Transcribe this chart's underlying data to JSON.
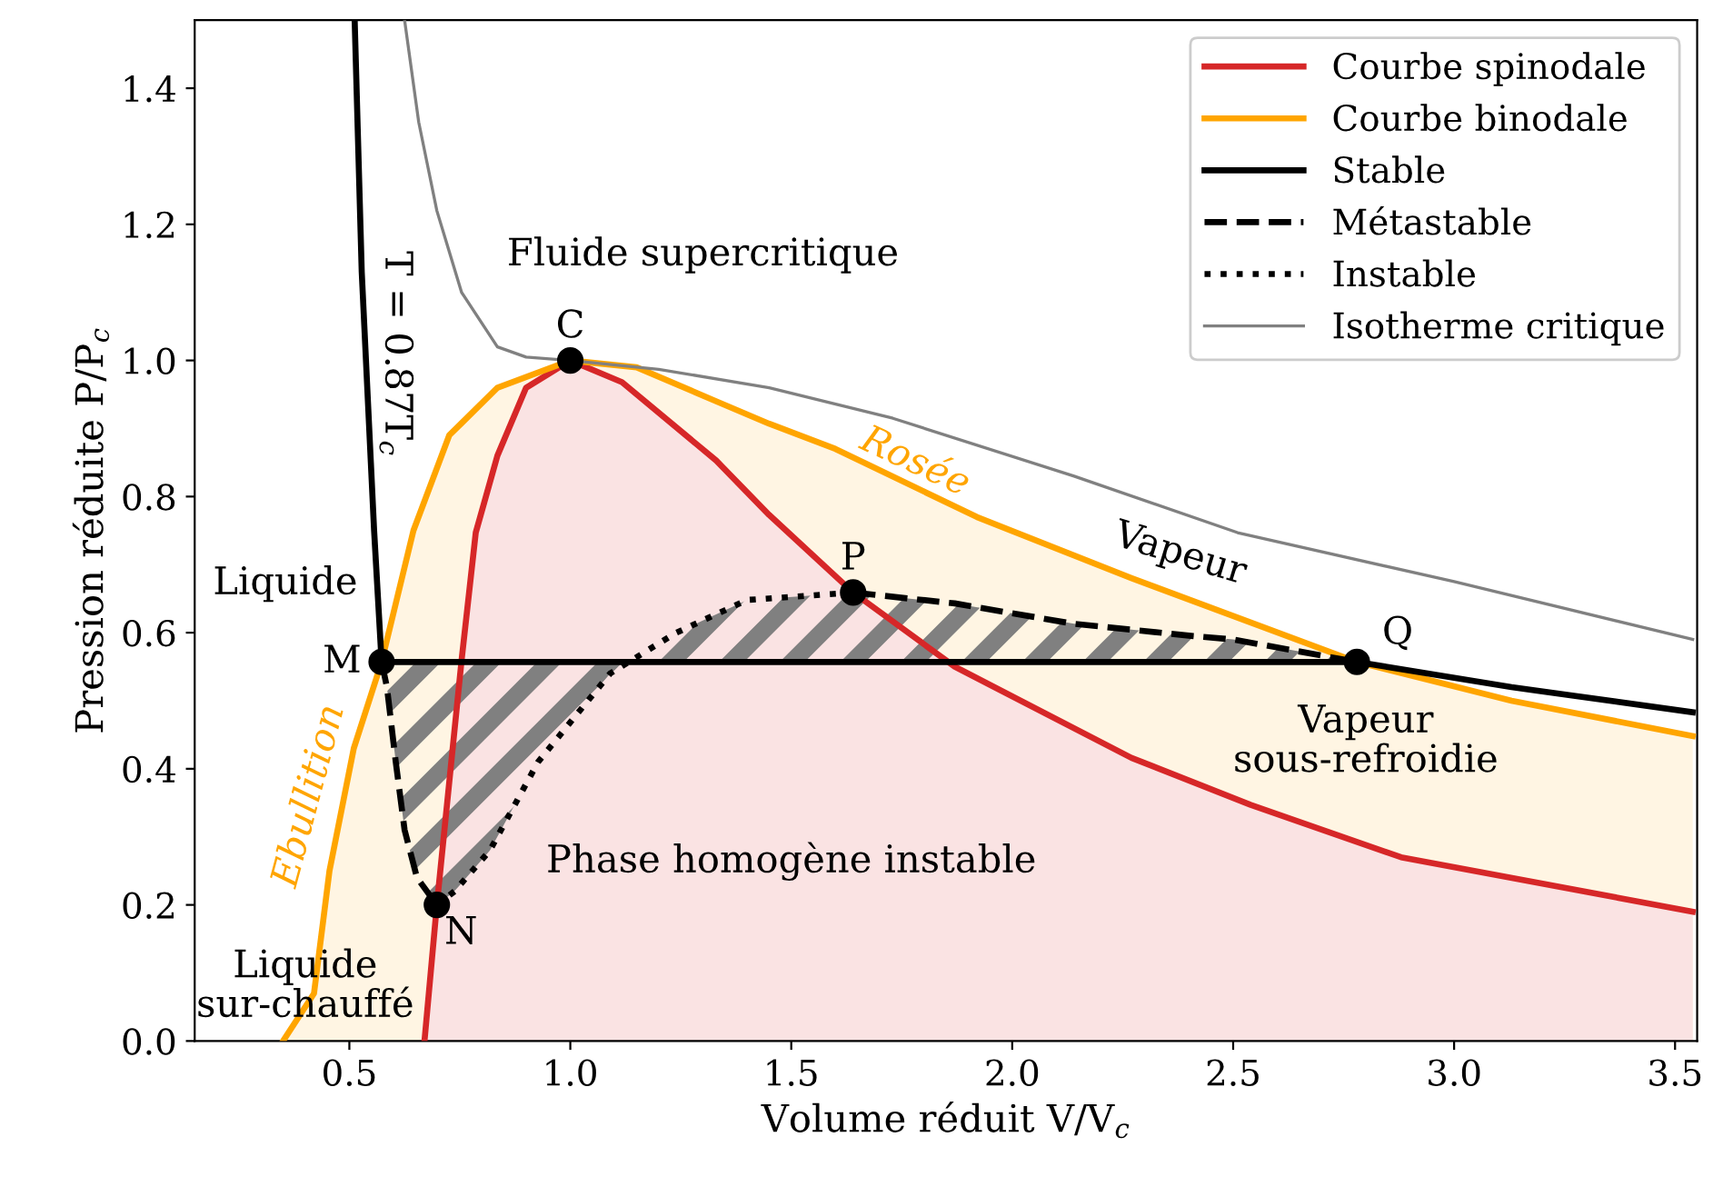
{
  "chart_data": {
    "type": "line",
    "xlabel": "Volume réduit V/V$_{c}$",
    "ylabel": "Pression réduite P/P$_{c}$",
    "xlim": [
      0.15,
      3.55
    ],
    "ylim": [
      0,
      1.5
    ],
    "xticks": [
      0.5,
      {
        "value": 1,
        "label": "1.0"
      },
      1.5,
      {
        "value": 2,
        "label": "2.0"
      },
      2.5,
      {
        "value": 3,
        "label": "3.0"
      },
      3.5
    ],
    "yticks": [
      {
        "value": 0,
        "label": "0.0"
      },
      0.2,
      0.4,
      0.6,
      0.8,
      {
        "value": 1,
        "label": "1.0"
      },
      1.2,
      1.4
    ],
    "grid": false,
    "legend": "top right",
    "series": [
      {
        "type": "area",
        "name": "Courbe spinodale",
        "color": "#d62728",
        "line_style": "solid",
        "x": [
          0.67,
          0.698,
          0.754,
          0.786,
          0.835,
          0.9,
          1.0,
          1.117,
          1.33,
          1.45,
          1.64,
          1.87,
          2.27,
          2.54,
          2.88,
          3.54
        ],
        "values": [
          0,
          0.2,
          0.56,
          0.747,
          0.86,
          0.96,
          1.0,
          0.968,
          0.853,
          0.773,
          0.659,
          0.55,
          0.416,
          0.347,
          0.27,
          0.19
        ]
      },
      {
        "type": "area",
        "name": "Courbe binodale",
        "color": "#ffa500",
        "line_style": "solid",
        "x": [
          0.35,
          0.42,
          0.455,
          0.51,
          0.573,
          0.645,
          0.726,
          0.835,
          1.0,
          1.15,
          1.33,
          1.45,
          1.6,
          1.92,
          2.27,
          2.78,
          3.13,
          3.54
        ],
        "values": [
          0,
          0.07,
          0.25,
          0.43,
          0.557,
          0.75,
          0.89,
          0.96,
          1.0,
          0.99,
          0.94,
          0.907,
          0.87,
          0.77,
          0.68,
          0.557,
          0.5,
          0.448
        ]
      },
      {
        "name": "Stable",
        "color": "#000000",
        "line_style": "solid",
        "x": [
          0.512,
          0.528,
          0.556,
          0.573,
          2.78,
          3.13,
          3.54
        ],
        "values": [
          1.5,
          1.13,
          0.75,
          0.557,
          0.557,
          0.52,
          0.483
        ]
      },
      {
        "name": "Métastable",
        "color": "#000000",
        "line_style": "dashed",
        "x": [
          0.573,
          0.585,
          0.605,
          0.625,
          0.653,
          0.698
        ],
        "values": [
          0.557,
          0.52,
          0.41,
          0.31,
          0.24,
          0.2
        ]
      },
      {
        "color": "#000000",
        "line_style": "dashed",
        "x": [
          1.64,
          1.87,
          2.14,
          2.41,
          2.5,
          2.78
        ],
        "values": [
          0.659,
          0.643,
          0.613,
          0.595,
          0.59,
          0.557
        ]
      },
      {
        "name": "Instable",
        "color": "#000000",
        "line_style": "dotted",
        "x": [
          0.698,
          0.738,
          0.818,
          0.927,
          1.09,
          1.24,
          1.4,
          1.64
        ],
        "values": [
          0.2,
          0.22,
          0.28,
          0.41,
          0.54,
          0.6,
          0.648,
          0.659
        ]
      },
      {
        "name": "Isotherme critique",
        "color": "#808080",
        "line_style": "solid",
        "x": [
          0.625,
          0.657,
          0.698,
          0.754,
          0.835,
          0.9,
          1.0,
          1.2,
          1.45,
          1.73,
          2.14,
          2.51,
          3.0,
          3.54
        ],
        "values": [
          1.5,
          1.35,
          1.22,
          1.1,
          1.02,
          1.005,
          1.0,
          0.987,
          0.96,
          0.915,
          0.83,
          0.747,
          0.675,
          0.59
        ]
      },
      {
        "type": "scatter",
        "color": "#000000",
        "marker": "circle",
        "x": [
          1.0,
          0.573,
          0.698,
          1.64,
          2.78
        ],
        "values": [
          1.0,
          0.557,
          0.2,
          0.659,
          0.557
        ]
      }
    ],
    "annotations": [
      {
        "text": "C",
        "x": 1.0,
        "y": 1.0
      },
      {
        "text": "M",
        "x": 0.573,
        "y": 0.557
      },
      {
        "text": "N",
        "x": 0.698,
        "y": 0.2
      },
      {
        "text": "P",
        "x": 1.64,
        "y": 0.659
      },
      {
        "text": "Q",
        "x": 2.78,
        "y": 0.557
      },
      "Fluide supercritique",
      "Liquide",
      "Vapeur",
      "Rosée",
      "Vapeur\nsous-refroidie",
      "Phase homogène instable",
      "Liquide\nsur-chauffé",
      "Ebullition",
      "T = 0.87T$_{c}$"
    ]
  }
}
